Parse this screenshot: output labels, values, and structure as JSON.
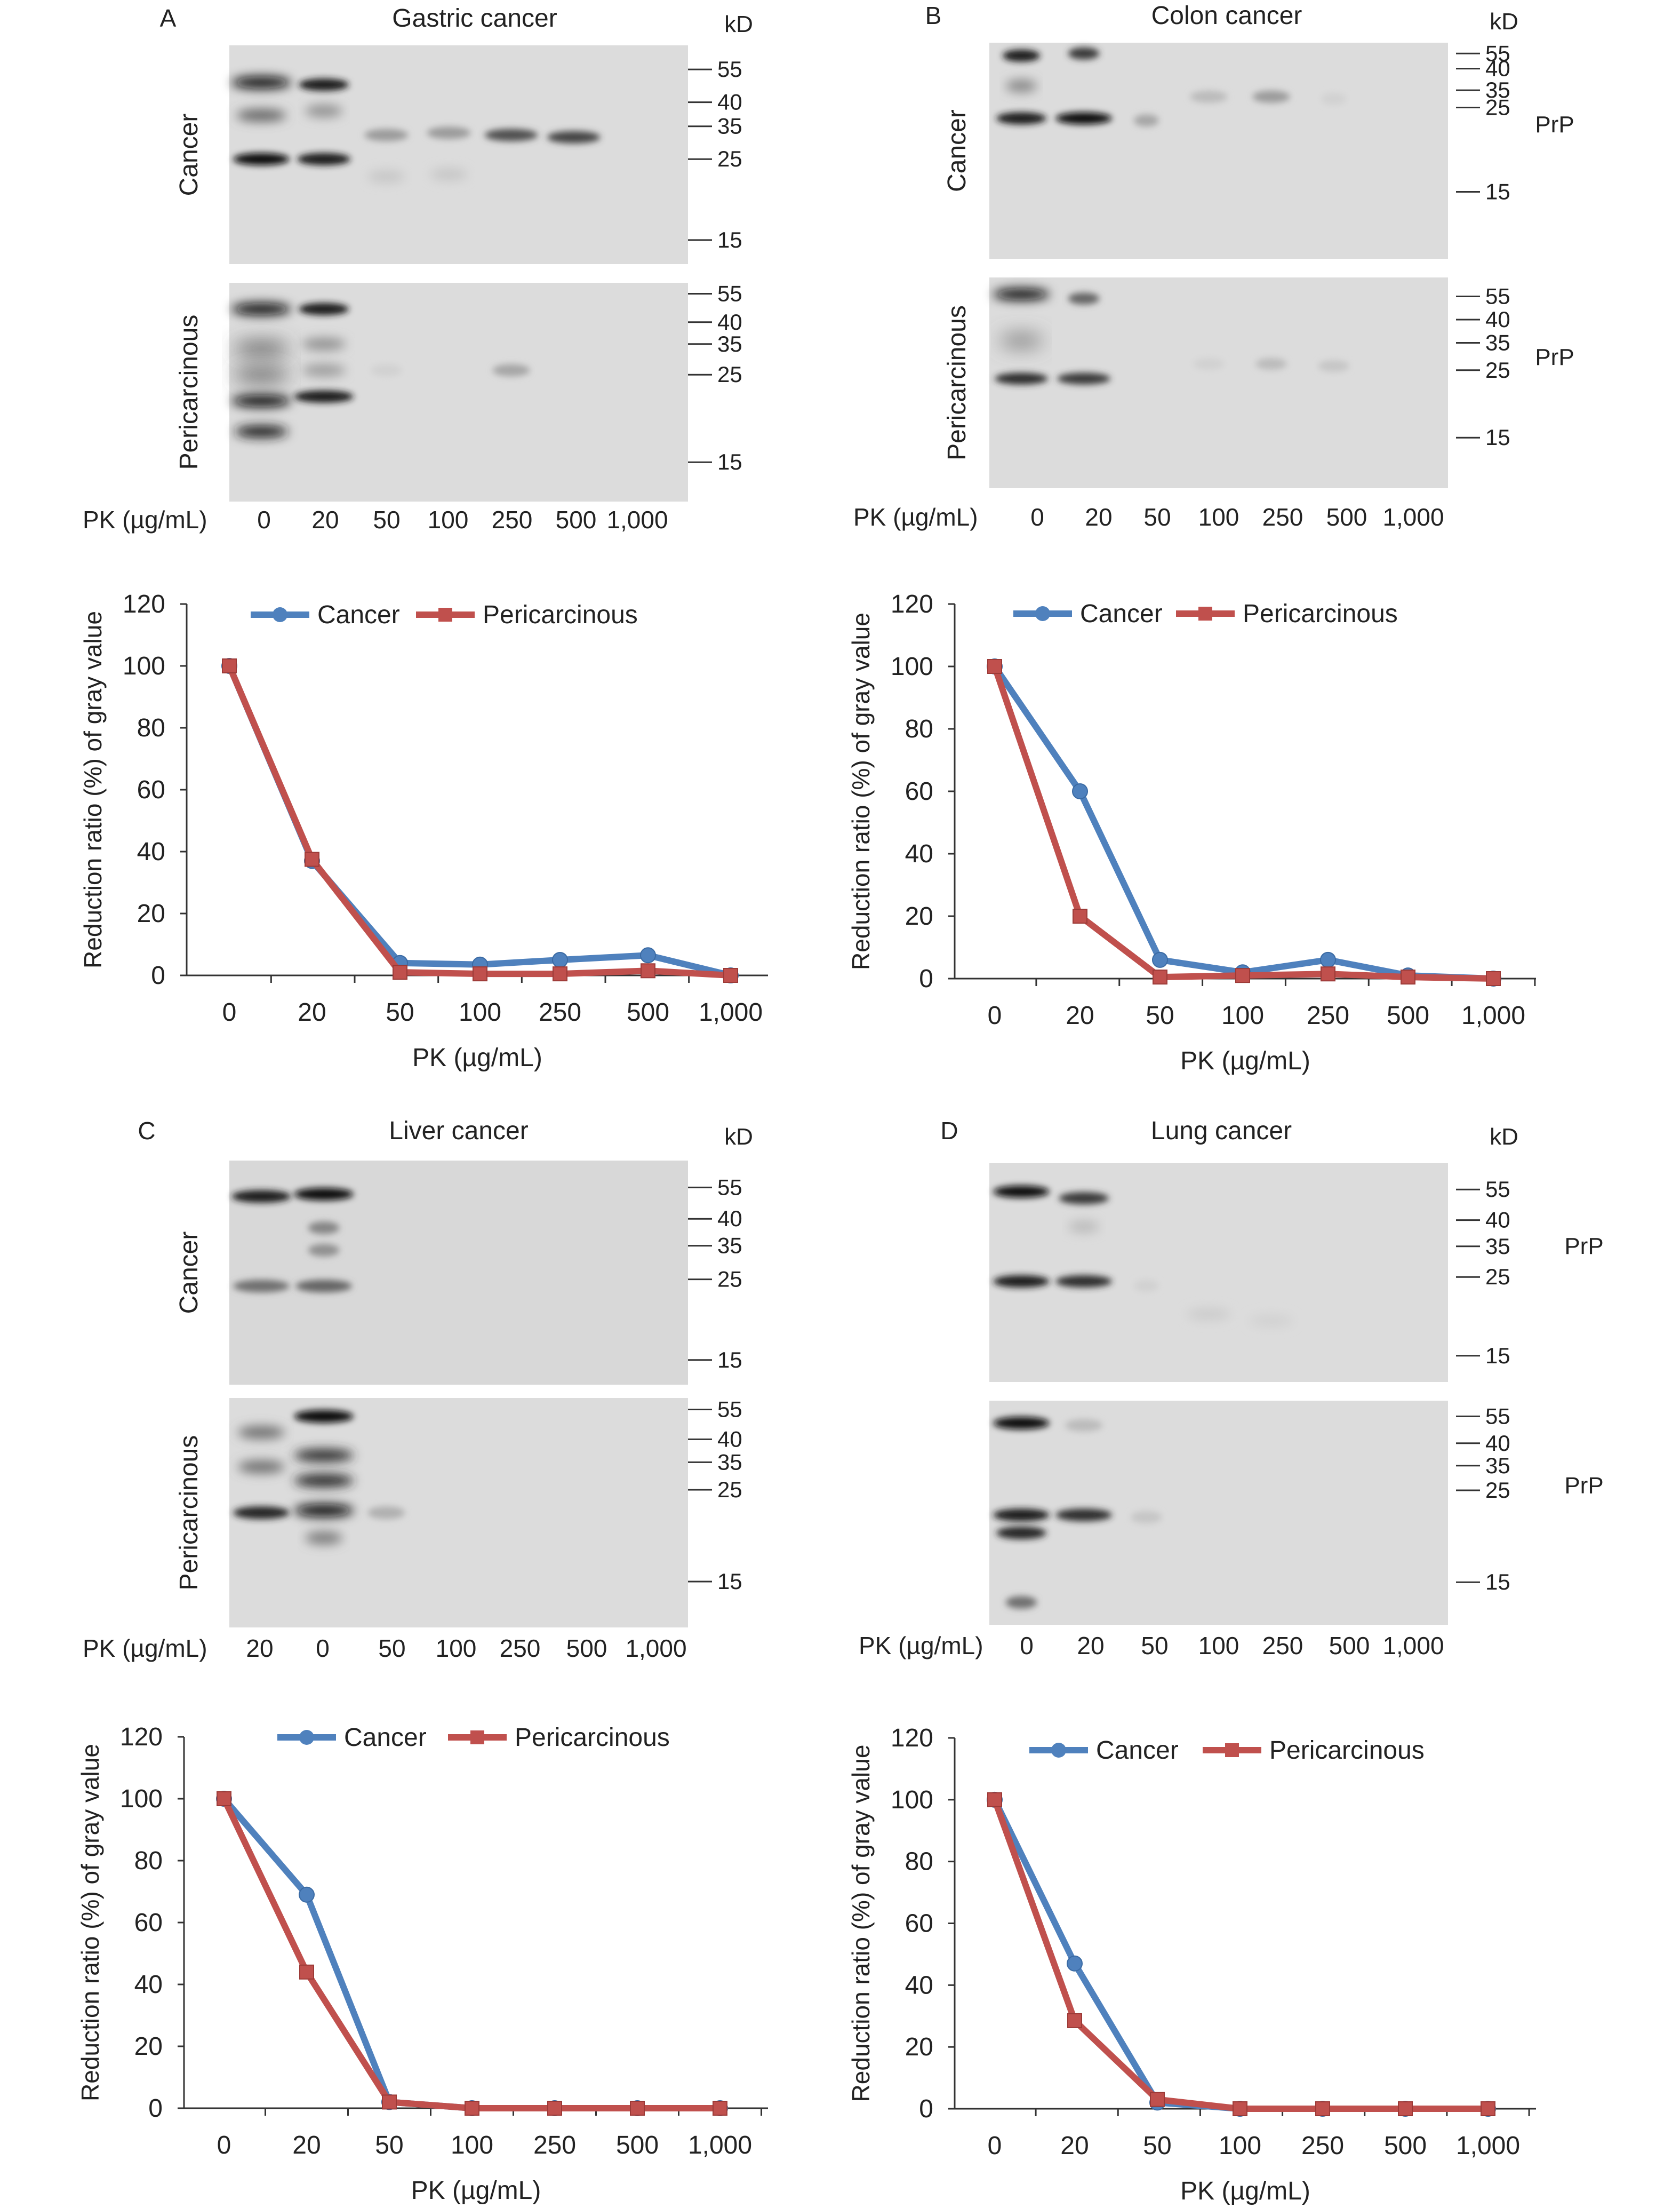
{
  "panels": [
    {
      "id": "A",
      "letter": "A",
      "title": "Gastric cancer",
      "kd_label": "kD",
      "gel_top": {
        "row_label": "Cancer",
        "markers": [
          "55",
          "40",
          "35",
          "25",
          "15"
        ],
        "protein_label": ""
      },
      "gel_bottom": {
        "row_label": "Pericarcinous",
        "markers": [
          "55",
          "40",
          "35",
          "25",
          "15"
        ],
        "protein_label": ""
      },
      "lane_axis_label": "PK (µg/mL)",
      "lanes": [
        "0",
        "20",
        "50",
        "100",
        "250",
        "500",
        "1,000"
      ]
    },
    {
      "id": "B",
      "letter": "B",
      "title": "Colon cancer",
      "kd_label": "kD",
      "gel_top": {
        "row_label": "Cancer",
        "markers": [
          "55",
          "40",
          "35",
          "25",
          "15"
        ],
        "protein_label": "PrP"
      },
      "gel_bottom": {
        "row_label": "Pericarcinous",
        "markers": [
          "55",
          "40",
          "35",
          "25",
          "15"
        ],
        "protein_label": "PrP"
      },
      "lane_axis_label": "PK (µg/mL)",
      "lanes": [
        "0",
        "20",
        "50",
        "100",
        "250",
        "500",
        "1,000"
      ]
    },
    {
      "id": "C",
      "letter": "C",
      "title": "Liver cancer",
      "kd_label": "kD",
      "gel_top": {
        "row_label": "Cancer",
        "markers": [
          "55",
          "40",
          "35",
          "25",
          "15"
        ],
        "protein_label": ""
      },
      "gel_bottom": {
        "row_label": "Pericarcinous",
        "markers": [
          "55",
          "40",
          "35",
          "25",
          "15"
        ],
        "protein_label": ""
      },
      "lane_axis_label": "PK (µg/mL)",
      "lanes": [
        "20",
        "0",
        "50",
        "100",
        "250",
        "500",
        "1,000"
      ]
    },
    {
      "id": "D",
      "letter": "D",
      "title": "Lung cancer",
      "kd_label": "kD",
      "gel_top": {
        "row_label": "",
        "markers": [
          "55",
          "40",
          "35",
          "25",
          "15"
        ],
        "protein_label": "PrP"
      },
      "gel_bottom": {
        "row_label": "",
        "markers": [
          "55",
          "40",
          "35",
          "25",
          "15"
        ],
        "protein_label": "PrP"
      },
      "lane_axis_label": "PK (µg/mL)",
      "lanes": [
        "0",
        "20",
        "50",
        "100",
        "250",
        "500",
        "1,000"
      ]
    }
  ],
  "colors": {
    "cancer": "#4f81bd",
    "pericarcinous": "#c0504d"
  },
  "chart_data": [
    {
      "panel": "A",
      "type": "line",
      "categories": [
        "0",
        "20",
        "50",
        "100",
        "250",
        "500",
        "1,000"
      ],
      "series": [
        {
          "name": "Cancer",
          "values": [
            100,
            37,
            4,
            3.5,
            5,
            6.5,
            0
          ]
        },
        {
          "name": "Pericarcinous",
          "values": [
            100,
            37.5,
            1,
            0.5,
            0.5,
            1.5,
            0
          ]
        }
      ],
      "xlabel": "PK (µg/mL)",
      "ylabel": "Reduction ratio (%) of gray value",
      "ylim": [
        0,
        120
      ],
      "yticks": [
        "0",
        "20",
        "40",
        "60",
        "80",
        "100",
        "120"
      ],
      "legend": "top-right",
      "grid": false
    },
    {
      "panel": "B",
      "type": "line",
      "categories": [
        "0",
        "20",
        "50",
        "100",
        "250",
        "500",
        "1,000"
      ],
      "series": [
        {
          "name": "Cancer",
          "values": [
            100,
            60,
            6,
            2,
            6,
            1,
            0
          ]
        },
        {
          "name": "Pericarcinous",
          "values": [
            100,
            20,
            0.5,
            1,
            1.5,
            0.5,
            0
          ]
        }
      ],
      "xlabel": "PK (µg/mL)",
      "ylabel": "Reduction ratio (%) of gray value",
      "ylim": [
        0,
        120
      ],
      "yticks": [
        "0",
        "20",
        "40",
        "60",
        "80",
        "100",
        "120"
      ],
      "legend": "top-right",
      "grid": false
    },
    {
      "panel": "C",
      "type": "line",
      "categories": [
        "0",
        "20",
        "50",
        "100",
        "250",
        "500",
        "1,000"
      ],
      "series": [
        {
          "name": "Cancer",
          "values": [
            100,
            69,
            2,
            0,
            0,
            0,
            0
          ]
        },
        {
          "name": "Pericarcinous",
          "values": [
            100,
            44,
            2,
            0,
            0,
            0,
            0
          ]
        }
      ],
      "xlabel": "PK (µg/mL)",
      "ylabel": "Reduction ratio (%) of gray value",
      "ylim": [
        0,
        120
      ],
      "yticks": [
        "0",
        "20",
        "40",
        "60",
        "80",
        "100",
        "120"
      ],
      "legend": "top-right",
      "grid": false
    },
    {
      "panel": "D",
      "type": "line",
      "categories": [
        "0",
        "20",
        "50",
        "100",
        "250",
        "500",
        "1,000"
      ],
      "series": [
        {
          "name": "Cancer",
          "values": [
            100,
            47,
            2,
            0,
            0,
            0,
            0
          ]
        },
        {
          "name": "Pericarcinous",
          "values": [
            100,
            28.5,
            3,
            0,
            0,
            0,
            0
          ]
        }
      ],
      "xlabel": "PK (µg/mL)",
      "ylabel": "Reduction ratio (%) of gray value",
      "ylim": [
        0,
        120
      ],
      "yticks": [
        "0",
        "20",
        "40",
        "60",
        "80",
        "100",
        "120"
      ],
      "legend": "top-right",
      "grid": false
    }
  ]
}
